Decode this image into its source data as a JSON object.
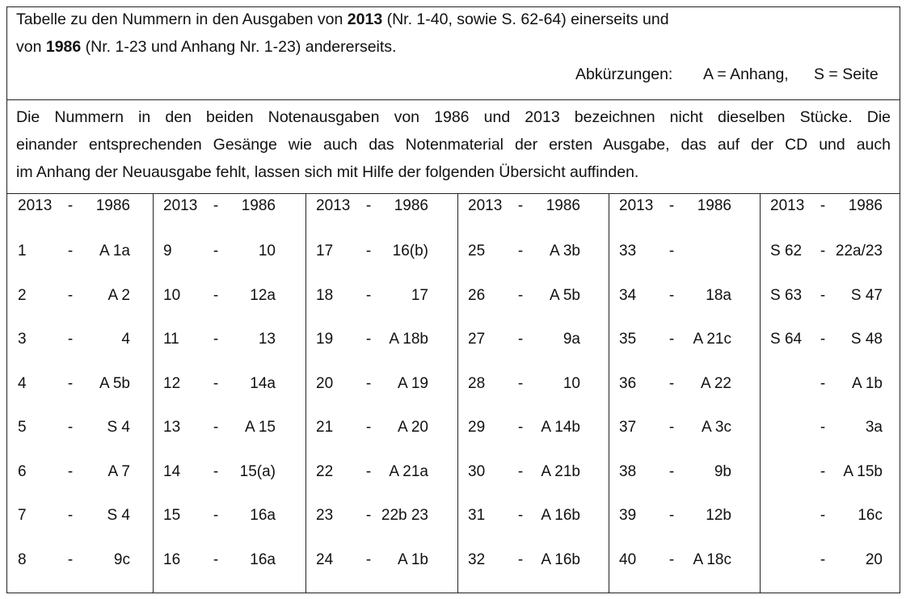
{
  "header": {
    "line1_prefix": "Tabelle zu den Nummern in den Ausgaben von ",
    "line1_year": "2013",
    "line1_suffix": " (Nr. 1-40, sowie S. 62-64) einerseits und",
    "line2_prefix": "von ",
    "line2_year": "1986",
    "line2_suffix": " (Nr. 1-23 und Anhang Nr. 1-23) andererseits.",
    "abbrev_label": "Abkürzungen:",
    "abbrev_a": "A = Anhang,",
    "abbrev_s": "S = Seite"
  },
  "intro": {
    "line1": "Die Nummern in den beiden Notenausgaben von 1986 und 2013 bezeichnen nicht dieselben Stücke. Die",
    "line2": "einander entsprechenden Gesänge wie auch das Notenmaterial der ersten Ausgabe, das auf der CD und auch",
    "line3": "im Anhang der Neuausgabe fehlt, lassen sich mit Hilfe der folgenden Übersicht auffinden."
  },
  "columns": [
    {
      "h2013": "2013",
      "hdash": "-",
      "h1986": "1986",
      "rows": [
        [
          "1",
          "-",
          "A 1a"
        ],
        [
          "2",
          "-",
          "A 2"
        ],
        [
          "3",
          "-",
          "4"
        ],
        [
          "4",
          "-",
          "A 5b"
        ],
        [
          "5",
          "-",
          "S 4"
        ],
        [
          "6",
          "-",
          "A 7"
        ],
        [
          "7",
          "-",
          "S 4"
        ],
        [
          "8",
          "-",
          "9c"
        ]
      ]
    },
    {
      "h2013": "2013",
      "hdash": "-",
      "h1986": "1986",
      "rows": [
        [
          "9",
          "-",
          "10"
        ],
        [
          "10",
          "-",
          "12a"
        ],
        [
          "11",
          "-",
          "13"
        ],
        [
          "12",
          "-",
          "14a"
        ],
        [
          "13",
          "-",
          "A 15"
        ],
        [
          "14",
          "-",
          "15(a)"
        ],
        [
          "15",
          "-",
          "16a"
        ],
        [
          "16",
          "-",
          "16a"
        ]
      ]
    },
    {
      "h2013": "2013",
      "hdash": "-",
      "h1986": "1986",
      "rows": [
        [
          "17",
          "-",
          "16(b)"
        ],
        [
          "18",
          "-",
          "17"
        ],
        [
          "19",
          "-",
          "A 18b"
        ],
        [
          "20",
          "-",
          "A 19"
        ],
        [
          "21",
          "-",
          "A 20"
        ],
        [
          "22",
          "-",
          "A 21a"
        ],
        [
          "23",
          "-",
          "22b 23"
        ],
        [
          "24",
          "-",
          "A 1b"
        ]
      ]
    },
    {
      "h2013": "2013",
      "hdash": "-",
      "h1986": "1986",
      "rows": [
        [
          "25",
          "-",
          "A 3b"
        ],
        [
          "26",
          "-",
          "A 5b"
        ],
        [
          "27",
          "-",
          "9a"
        ],
        [
          "28",
          "-",
          "10"
        ],
        [
          "29",
          "-",
          "A 14b"
        ],
        [
          "30",
          "-",
          "A 21b"
        ],
        [
          "31",
          "-",
          "A 16b"
        ],
        [
          "32",
          "-",
          "A 16b"
        ]
      ]
    },
    {
      "h2013": "2013",
      "hdash": "-",
      "h1986": "1986",
      "rows": [
        [
          "33",
          "-",
          ""
        ],
        [
          "34",
          "-",
          "18a"
        ],
        [
          "35",
          "-",
          "A 21c"
        ],
        [
          "36",
          "-",
          "A 22"
        ],
        [
          "37",
          "-",
          "A 3c"
        ],
        [
          "38",
          "-",
          "9b"
        ],
        [
          "39",
          "-",
          "12b"
        ],
        [
          "40",
          "-",
          "A 18c"
        ]
      ]
    },
    {
      "h2013": "2013",
      "hdash": "-",
      "h1986": "1986",
      "rows": [
        [
          "S 62",
          "-",
          "22a/23"
        ],
        [
          "S 63",
          "-",
          "S 47"
        ],
        [
          "S 64",
          "-",
          "S 48"
        ],
        [
          "",
          "-",
          "A 1b"
        ],
        [
          "",
          "-",
          "3a"
        ],
        [
          "",
          "-",
          "A 15b"
        ],
        [
          "",
          "-",
          "16c"
        ],
        [
          "",
          "-",
          "20"
        ]
      ]
    }
  ]
}
